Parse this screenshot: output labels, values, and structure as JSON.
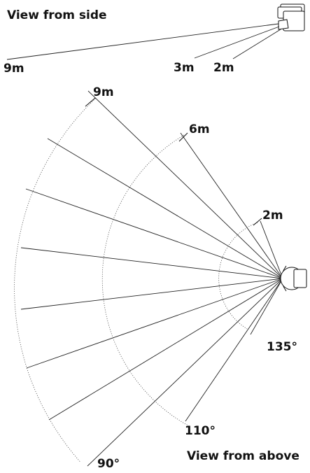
{
  "side_view": {
    "title": "View from side",
    "labels": [
      "9m",
      "3m",
      "2m"
    ]
  },
  "top_view": {
    "title": "View from above",
    "range_labels": [
      "9m",
      "6m",
      "2m"
    ],
    "angle_labels": [
      "135°",
      "110°",
      "90°"
    ]
  }
}
